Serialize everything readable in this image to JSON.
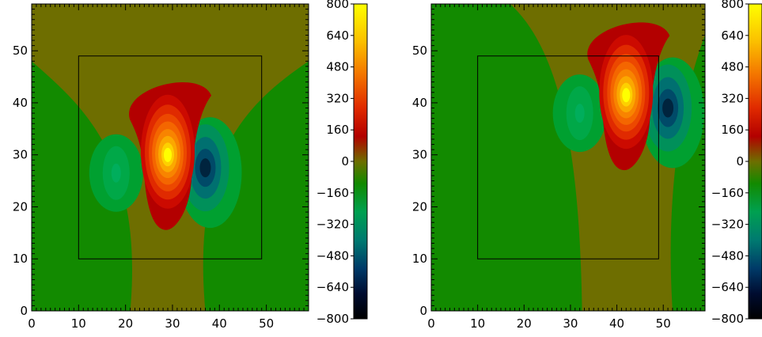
{
  "chart_data": [
    {
      "type": "heatmap",
      "title": "",
      "xlabel": "",
      "ylabel": "",
      "xlim": [
        0,
        59
      ],
      "ylim": [
        0,
        59
      ],
      "xticks": [
        "0",
        "10",
        "20",
        "30",
        "40",
        "50"
      ],
      "yticks": [
        "0",
        "10",
        "20",
        "30",
        "40",
        "50"
      ],
      "box": {
        "x0": 10,
        "x1": 49,
        "y0": 10,
        "y1": 49
      },
      "features": [
        {
          "kind": "positive_peak",
          "x": 29,
          "y": 30,
          "value": 800
        },
        {
          "kind": "negative_peak",
          "x": 37,
          "y": 27.5,
          "value": -520
        },
        {
          "kind": "negative_peak",
          "x": 18,
          "y": 26.5,
          "value": -210
        }
      ],
      "colorbar": {
        "min": -800,
        "max": 800,
        "ticks": [
          "800",
          "640",
          "480",
          "320",
          "160",
          "0",
          "−160",
          "−320",
          "−480",
          "−640",
          "−800"
        ]
      }
    },
    {
      "type": "heatmap",
      "title": "",
      "xlabel": "",
      "ylabel": "",
      "xlim": [
        0,
        59
      ],
      "ylim": [
        0,
        59
      ],
      "xticks": [
        "0",
        "10",
        "20",
        "30",
        "40",
        "50"
      ],
      "yticks": [
        "0",
        "10",
        "20",
        "30",
        "40",
        "50"
      ],
      "box": {
        "x0": 10,
        "x1": 49,
        "y0": 10,
        "y1": 49
      },
      "features": [
        {
          "kind": "positive_peak",
          "x": 42,
          "y": 41.5,
          "value": 800
        },
        {
          "kind": "negative_peak",
          "x": 51,
          "y": 39,
          "value": -500
        },
        {
          "kind": "negative_peak",
          "x": 32,
          "y": 38,
          "value": -200
        }
      ],
      "colorbar": {
        "min": -800,
        "max": 800,
        "ticks": [
          "800",
          "640",
          "480",
          "320",
          "160",
          "0",
          "−160",
          "−320",
          "−480",
          "−640",
          "−800"
        ]
      }
    }
  ],
  "colors": {
    "background": "#6e6e00",
    "green": "#128a00",
    "positive_ramp": [
      "#b30000",
      "#d61000",
      "#ec3400",
      "#f46600",
      "#f89400",
      "#fbbc00",
      "#fde000",
      "#ffff00"
    ],
    "negative_ramp": [
      "#00a030",
      "#00905a",
      "#007070",
      "#004a68",
      "#00243e"
    ]
  }
}
